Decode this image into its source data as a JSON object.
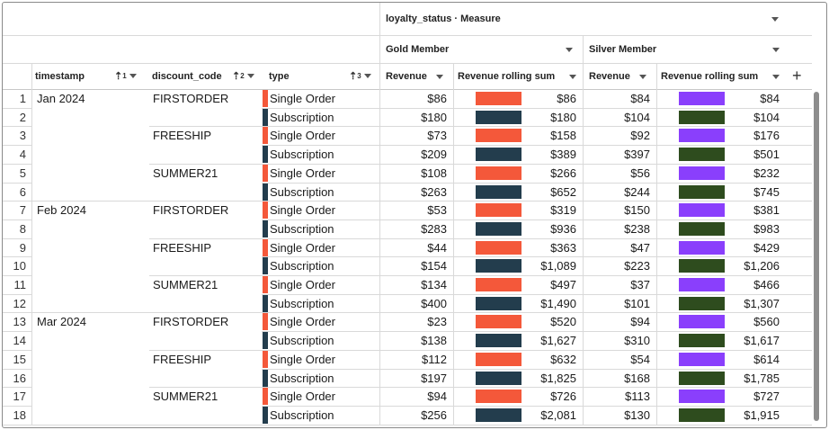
{
  "header": {
    "pivot_title": "loyalty_status · Measure",
    "groups": [
      "Gold Member",
      "Silver Member"
    ],
    "row_columns": [
      "timestamp",
      "discount_code",
      "type"
    ],
    "sort_badges": [
      "1",
      "2",
      "3"
    ],
    "measures": [
      "Revenue",
      "Revenue rolling sum",
      "Revenue",
      "Revenue rolling sum"
    ],
    "add_column_label": "+"
  },
  "colors": {
    "single_order": "#f4583a",
    "subscription": "#233d4d",
    "silver_single": "#8a3ffc",
    "silver_subscription": "#2e4c1e"
  },
  "rows": [
    {
      "n": "1",
      "ts": "Jan 2024",
      "code": "FIRSTORDER",
      "type": "Single Order",
      "g_rev": "$86",
      "g_sum": "$86",
      "s_rev": "$84",
      "s_sum": "$84"
    },
    {
      "n": "2",
      "ts": "",
      "code": "",
      "type": "Subscription",
      "g_rev": "$180",
      "g_sum": "$180",
      "s_rev": "$104",
      "s_sum": "$104"
    },
    {
      "n": "3",
      "ts": "",
      "code": "FREESHIP",
      "type": "Single Order",
      "g_rev": "$73",
      "g_sum": "$158",
      "s_rev": "$92",
      "s_sum": "$176"
    },
    {
      "n": "4",
      "ts": "",
      "code": "",
      "type": "Subscription",
      "g_rev": "$209",
      "g_sum": "$389",
      "s_rev": "$397",
      "s_sum": "$501"
    },
    {
      "n": "5",
      "ts": "",
      "code": "SUMMER21",
      "type": "Single Order",
      "g_rev": "$108",
      "g_sum": "$266",
      "s_rev": "$56",
      "s_sum": "$232"
    },
    {
      "n": "6",
      "ts": "",
      "code": "",
      "type": "Subscription",
      "g_rev": "$263",
      "g_sum": "$652",
      "s_rev": "$244",
      "s_sum": "$745"
    },
    {
      "n": "7",
      "ts": "Feb 2024",
      "code": "FIRSTORDER",
      "type": "Single Order",
      "g_rev": "$53",
      "g_sum": "$319",
      "s_rev": "$150",
      "s_sum": "$381"
    },
    {
      "n": "8",
      "ts": "",
      "code": "",
      "type": "Subscription",
      "g_rev": "$283",
      "g_sum": "$936",
      "s_rev": "$238",
      "s_sum": "$983"
    },
    {
      "n": "9",
      "ts": "",
      "code": "FREESHIP",
      "type": "Single Order",
      "g_rev": "$44",
      "g_sum": "$363",
      "s_rev": "$47",
      "s_sum": "$429"
    },
    {
      "n": "10",
      "ts": "",
      "code": "",
      "type": "Subscription",
      "g_rev": "$154",
      "g_sum": "$1,089",
      "s_rev": "$223",
      "s_sum": "$1,206"
    },
    {
      "n": "11",
      "ts": "",
      "code": "SUMMER21",
      "type": "Single Order",
      "g_rev": "$134",
      "g_sum": "$497",
      "s_rev": "$37",
      "s_sum": "$466"
    },
    {
      "n": "12",
      "ts": "",
      "code": "",
      "type": "Subscription",
      "g_rev": "$400",
      "g_sum": "$1,490",
      "s_rev": "$101",
      "s_sum": "$1,307"
    },
    {
      "n": "13",
      "ts": "Mar 2024",
      "code": "FIRSTORDER",
      "type": "Single Order",
      "g_rev": "$23",
      "g_sum": "$520",
      "s_rev": "$94",
      "s_sum": "$560"
    },
    {
      "n": "14",
      "ts": "",
      "code": "",
      "type": "Subscription",
      "g_rev": "$138",
      "g_sum": "$1,627",
      "s_rev": "$310",
      "s_sum": "$1,617"
    },
    {
      "n": "15",
      "ts": "",
      "code": "FREESHIP",
      "type": "Single Order",
      "g_rev": "$112",
      "g_sum": "$632",
      "s_rev": "$54",
      "s_sum": "$614"
    },
    {
      "n": "16",
      "ts": "",
      "code": "",
      "type": "Subscription",
      "g_rev": "$197",
      "g_sum": "$1,825",
      "s_rev": "$168",
      "s_sum": "$1,785"
    },
    {
      "n": "17",
      "ts": "",
      "code": "SUMMER21",
      "type": "Single Order",
      "g_rev": "$94",
      "g_sum": "$726",
      "s_rev": "$113",
      "s_sum": "$727"
    },
    {
      "n": "18",
      "ts": "",
      "code": "",
      "type": "Subscription",
      "g_rev": "$256",
      "g_sum": "$2,081",
      "s_rev": "$130",
      "s_sum": "$1,915"
    }
  ]
}
